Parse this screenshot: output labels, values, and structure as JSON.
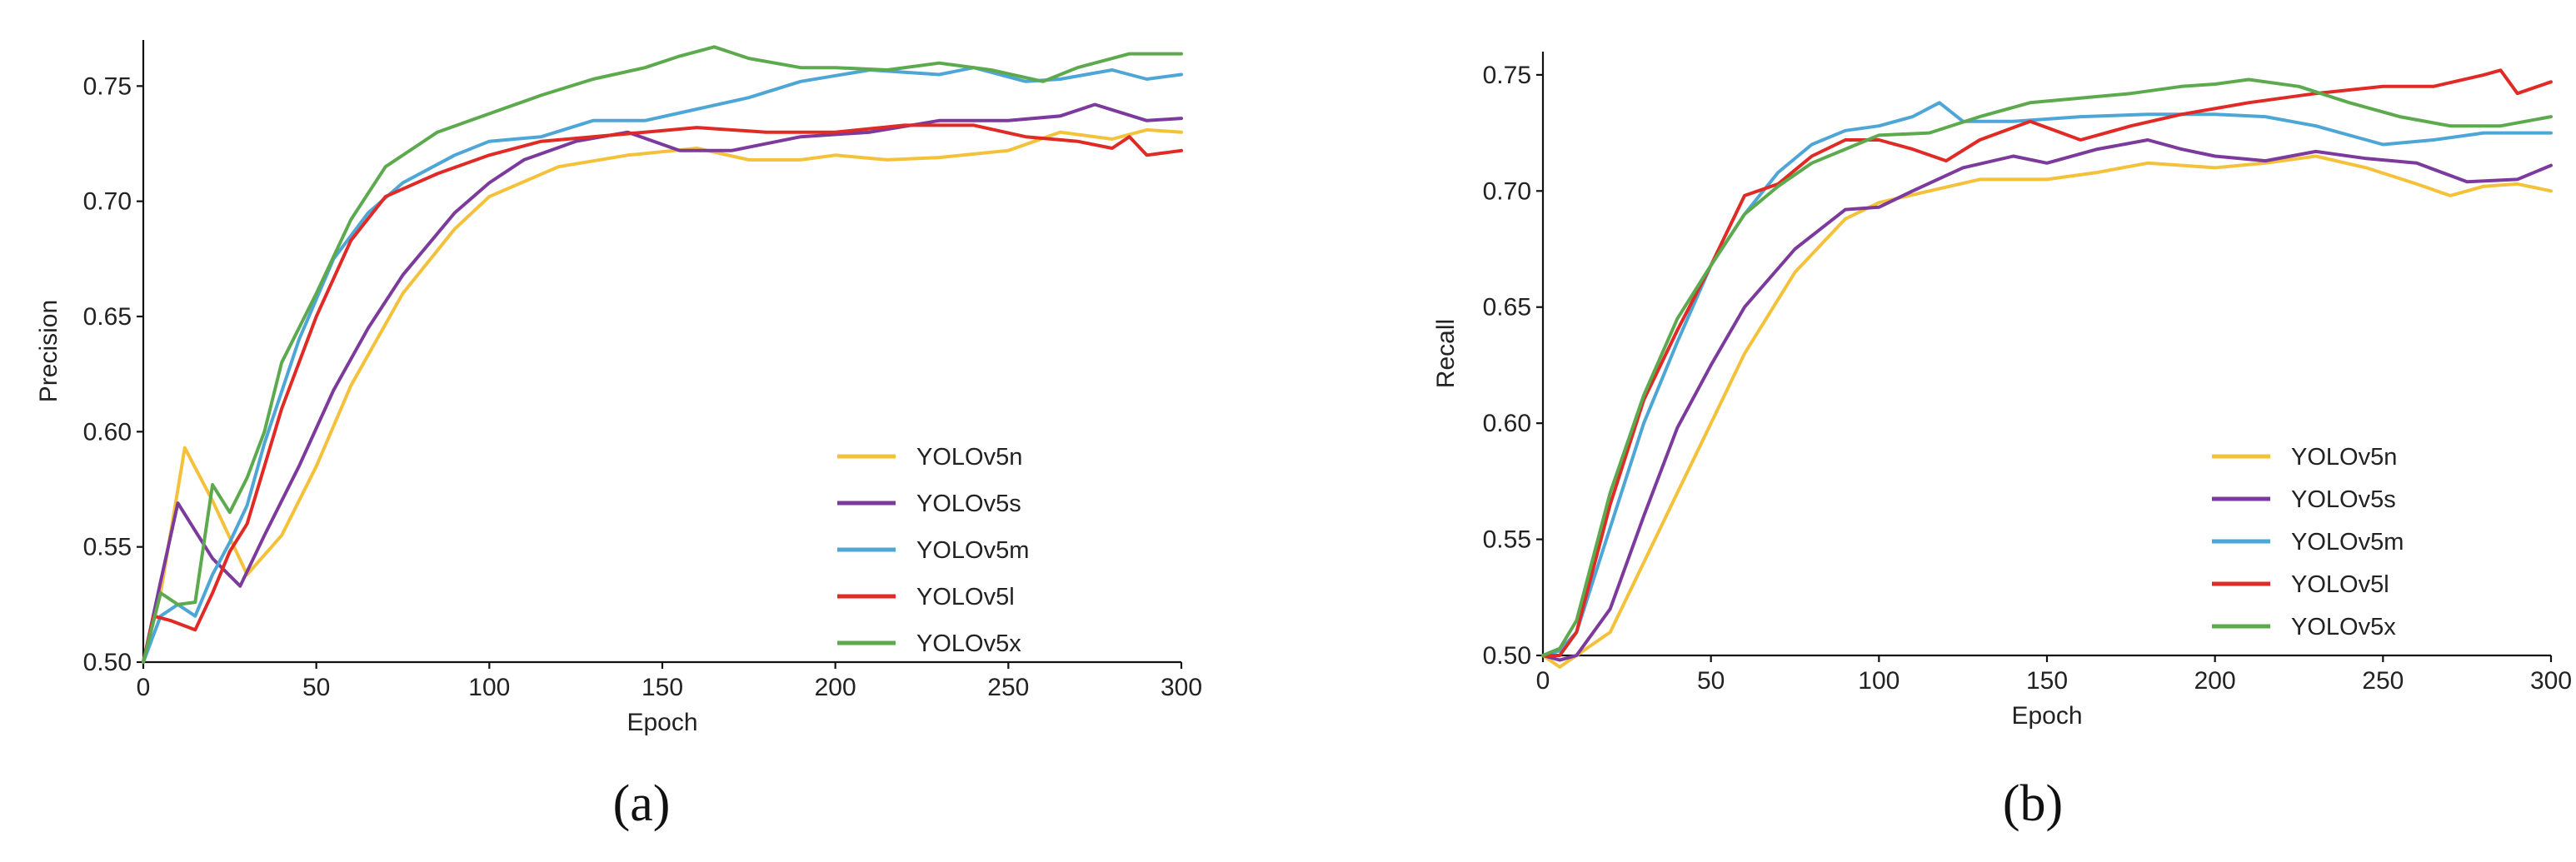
{
  "colors": {
    "YOLOv5n": "#F4C13A",
    "YOLOv5s": "#7B3A9C",
    "YOLOv5m": "#4DA6D6",
    "YOLOv5l": "#E02A25",
    "YOLOv5x": "#5DAA4E"
  },
  "chart_data": [
    {
      "type": "line",
      "caption": "(a)",
      "xlabel": "Epoch",
      "ylabel": "Precision",
      "xlim": [
        0,
        300
      ],
      "ylim": [
        0.5,
        0.77
      ],
      "xticks": [
        "0",
        "50",
        "100",
        "150",
        "200",
        "250",
        "300"
      ],
      "yticks": [
        "0.50",
        "0.55",
        "0.60",
        "0.65",
        "0.70",
        "0.75"
      ],
      "legend_position": "bottom-right",
      "series": [
        {
          "name": "YOLOv5n",
          "x": [
            0,
            5,
            12,
            20,
            30,
            40,
            50,
            60,
            75,
            90,
            100,
            120,
            140,
            160,
            175,
            190,
            200,
            215,
            230,
            250,
            265,
            280,
            290,
            300
          ],
          "y": [
            0.5,
            0.53,
            0.593,
            0.57,
            0.538,
            0.555,
            0.585,
            0.62,
            0.66,
            0.688,
            0.702,
            0.715,
            0.72,
            0.723,
            0.718,
            0.718,
            0.72,
            0.718,
            0.719,
            0.722,
            0.73,
            0.727,
            0.731,
            0.73
          ]
        },
        {
          "name": "YOLOv5s",
          "x": [
            0,
            5,
            10,
            20,
            28,
            35,
            45,
            55,
            65,
            75,
            90,
            100,
            110,
            125,
            140,
            155,
            170,
            190,
            210,
            230,
            250,
            265,
            275,
            290,
            300
          ],
          "y": [
            0.5,
            0.535,
            0.569,
            0.545,
            0.533,
            0.555,
            0.585,
            0.618,
            0.645,
            0.668,
            0.695,
            0.708,
            0.718,
            0.726,
            0.73,
            0.722,
            0.722,
            0.728,
            0.73,
            0.735,
            0.735,
            0.737,
            0.742,
            0.735,
            0.736
          ]
        },
        {
          "name": "YOLOv5m",
          "x": [
            0,
            5,
            10,
            15,
            20,
            25,
            30,
            35,
            45,
            55,
            65,
            75,
            90,
            100,
            115,
            130,
            145,
            160,
            175,
            190,
            210,
            230,
            240,
            255,
            265,
            280,
            290,
            300
          ],
          "y": [
            0.5,
            0.52,
            0.525,
            0.52,
            0.538,
            0.552,
            0.568,
            0.595,
            0.64,
            0.675,
            0.695,
            0.708,
            0.72,
            0.726,
            0.728,
            0.735,
            0.735,
            0.74,
            0.745,
            0.752,
            0.757,
            0.755,
            0.758,
            0.752,
            0.753,
            0.757,
            0.753,
            0.755
          ]
        },
        {
          "name": "YOLOv5l",
          "x": [
            0,
            3,
            8,
            15,
            20,
            25,
            30,
            35,
            40,
            50,
            60,
            70,
            85,
            100,
            115,
            130,
            145,
            160,
            180,
            200,
            220,
            240,
            255,
            270,
            280,
            285,
            290,
            300
          ],
          "y": [
            0.5,
            0.52,
            0.518,
            0.514,
            0.53,
            0.548,
            0.56,
            0.585,
            0.61,
            0.65,
            0.683,
            0.702,
            0.712,
            0.72,
            0.726,
            0.728,
            0.73,
            0.732,
            0.73,
            0.73,
            0.733,
            0.733,
            0.728,
            0.726,
            0.723,
            0.728,
            0.72,
            0.722
          ]
        },
        {
          "name": "YOLOv5x",
          "x": [
            0,
            5,
            10,
            15,
            20,
            25,
            30,
            35,
            40,
            50,
            60,
            70,
            85,
            100,
            115,
            130,
            145,
            155,
            165,
            175,
            190,
            200,
            215,
            230,
            245,
            260,
            270,
            285,
            300
          ],
          "y": [
            0.5,
            0.53,
            0.525,
            0.526,
            0.577,
            0.565,
            0.58,
            0.6,
            0.63,
            0.66,
            0.692,
            0.715,
            0.73,
            0.738,
            0.746,
            0.753,
            0.758,
            0.763,
            0.767,
            0.762,
            0.758,
            0.758,
            0.757,
            0.76,
            0.757,
            0.752,
            0.758,
            0.764,
            0.764
          ]
        }
      ]
    },
    {
      "type": "line",
      "caption": "(b)",
      "xlabel": "Epoch",
      "ylabel": "Recall",
      "xlim": [
        0,
        300
      ],
      "ylim": [
        0.5,
        0.76
      ],
      "xticks": [
        "0",
        "50",
        "100",
        "150",
        "200",
        "250",
        "300"
      ],
      "yticks": [
        "0.50",
        "0.55",
        "0.60",
        "0.65",
        "0.70",
        "0.75"
      ],
      "legend_position": "bottom-right",
      "series": [
        {
          "name": "YOLOv5n",
          "x": [
            0,
            5,
            10,
            20,
            30,
            40,
            50,
            60,
            75,
            90,
            100,
            115,
            130,
            150,
            165,
            180,
            200,
            215,
            230,
            245,
            260,
            270,
            280,
            290,
            300
          ],
          "y": [
            0.5,
            0.495,
            0.5,
            0.51,
            0.54,
            0.57,
            0.6,
            0.63,
            0.665,
            0.688,
            0.695,
            0.7,
            0.705,
            0.705,
            0.708,
            0.712,
            0.71,
            0.712,
            0.715,
            0.71,
            0.703,
            0.698,
            0.702,
            0.703,
            0.7
          ]
        },
        {
          "name": "YOLOv5s",
          "x": [
            0,
            5,
            10,
            20,
            30,
            40,
            50,
            60,
            75,
            90,
            100,
            110,
            125,
            140,
            150,
            165,
            180,
            190,
            200,
            215,
            230,
            245,
            260,
            275,
            290,
            300
          ],
          "y": [
            0.5,
            0.498,
            0.5,
            0.52,
            0.56,
            0.598,
            0.625,
            0.65,
            0.675,
            0.692,
            0.693,
            0.7,
            0.71,
            0.715,
            0.712,
            0.718,
            0.722,
            0.718,
            0.715,
            0.713,
            0.717,
            0.714,
            0.712,
            0.704,
            0.705,
            0.711
          ]
        },
        {
          "name": "YOLOv5m",
          "x": [
            0,
            5,
            10,
            20,
            30,
            40,
            50,
            60,
            70,
            80,
            90,
            100,
            110,
            118,
            125,
            140,
            160,
            180,
            200,
            215,
            230,
            250,
            265,
            280,
            300
          ],
          "y": [
            0.5,
            0.502,
            0.51,
            0.555,
            0.6,
            0.635,
            0.668,
            0.69,
            0.708,
            0.72,
            0.726,
            0.728,
            0.732,
            0.738,
            0.73,
            0.73,
            0.732,
            0.733,
            0.733,
            0.732,
            0.728,
            0.72,
            0.722,
            0.725,
            0.725
          ]
        },
        {
          "name": "YOLOv5l",
          "x": [
            0,
            5,
            10,
            20,
            30,
            40,
            50,
            60,
            70,
            80,
            90,
            100,
            110,
            120,
            130,
            145,
            160,
            175,
            190,
            210,
            230,
            250,
            265,
            280,
            285,
            290,
            300
          ],
          "y": [
            0.5,
            0.5,
            0.51,
            0.565,
            0.61,
            0.64,
            0.668,
            0.698,
            0.703,
            0.715,
            0.722,
            0.722,
            0.718,
            0.713,
            0.722,
            0.73,
            0.722,
            0.728,
            0.733,
            0.738,
            0.742,
            0.745,
            0.745,
            0.75,
            0.752,
            0.742,
            0.747
          ]
        },
        {
          "name": "YOLOv5x",
          "x": [
            0,
            5,
            10,
            20,
            30,
            40,
            50,
            60,
            70,
            80,
            90,
            100,
            115,
            130,
            145,
            160,
            175,
            190,
            200,
            210,
            225,
            240,
            255,
            270,
            285,
            300
          ],
          "y": [
            0.5,
            0.503,
            0.515,
            0.57,
            0.612,
            0.645,
            0.668,
            0.69,
            0.702,
            0.712,
            0.718,
            0.724,
            0.725,
            0.732,
            0.738,
            0.74,
            0.742,
            0.745,
            0.746,
            0.748,
            0.745,
            0.738,
            0.732,
            0.728,
            0.728,
            0.732
          ]
        }
      ]
    }
  ]
}
